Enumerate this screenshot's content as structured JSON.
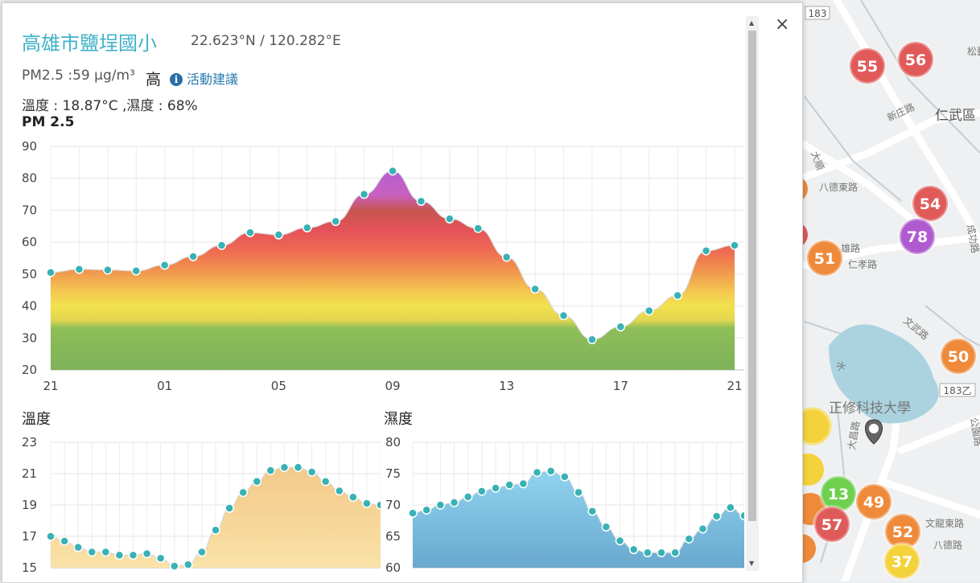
{
  "station": {
    "name": "高雄市鹽埕國小",
    "coords": "22.623°N / 120.282°E",
    "pm_text": "PM2.5 :59 μg/m³",
    "level": "高",
    "advice_label": "活動建議",
    "env_text": "溫度 : 18.87°C ,濕度 : 68%"
  },
  "close_glyph": "×",
  "map": {
    "road_labels": [
      "新庄路",
      "仁武區",
      "八德東路",
      "仁孝路",
      "雄路",
      "文武路",
      "正修科技大學",
      "大昌路",
      "文龍東路",
      "八德路",
      "183",
      "183乙",
      "松藝路",
      "水",
      "成功路",
      "公園路",
      "大順"
    ],
    "markers": [
      {
        "value": "55",
        "color": "#e05a5a"
      },
      {
        "value": "56",
        "color": "#e05a5a"
      },
      {
        "value": "54",
        "color": "#e05a5a"
      },
      {
        "value": "78",
        "color": "#b05ad0"
      },
      {
        "value": "51",
        "color": "#ee8a3a"
      },
      {
        "value": "50",
        "color": "#ee8a3a"
      },
      {
        "value": "13",
        "color": "#6fcf4f"
      },
      {
        "value": "49",
        "color": "#ee8a3a"
      },
      {
        "value": "57",
        "color": "#e05a5a"
      },
      {
        "value": "52",
        "color": "#ee8a3a"
      },
      {
        "value": "37",
        "color": "#f3d23c"
      }
    ]
  },
  "chart_data": [
    {
      "type": "area",
      "title": "PM 2.5",
      "x_tick_labels": [
        "21",
        "01",
        "05",
        "09",
        "13",
        "17",
        "21"
      ],
      "ylim": [
        20,
        90
      ],
      "y_ticks": [
        20,
        30,
        40,
        50,
        60,
        70,
        80,
        90
      ],
      "values": [
        50.5,
        51.5,
        51.3,
        51,
        52.8,
        55.5,
        59,
        63,
        62.3,
        64.5,
        66.5,
        75,
        82.3,
        72.8,
        67.3,
        64.3,
        55.3,
        45.3,
        37,
        29.5,
        33.5,
        38.5,
        43.3,
        57.3,
        59
      ],
      "grid": true
    },
    {
      "type": "area",
      "title": "溫度",
      "ylim": [
        15,
        23
      ],
      "y_ticks": [
        15,
        17,
        19,
        21,
        23
      ],
      "values": [
        17.0,
        16.7,
        16.3,
        16.0,
        16.0,
        15.8,
        15.8,
        15.9,
        15.6,
        15.1,
        15.2,
        16.0,
        17.4,
        18.8,
        19.8,
        20.5,
        21.2,
        21.4,
        21.4,
        21.1,
        20.5,
        19.9,
        19.5,
        19.1,
        19.0
      ],
      "grid": true
    },
    {
      "type": "area",
      "title": "濕度",
      "ylim": [
        60,
        80
      ],
      "y_ticks": [
        60,
        65,
        70,
        75,
        80
      ],
      "values": [
        68.7,
        69.2,
        70,
        70.4,
        71.3,
        72.2,
        72.7,
        73.2,
        73.4,
        75.2,
        75.4,
        74.5,
        72,
        69,
        66.5,
        64.3,
        62.9,
        62.4,
        62.4,
        62.4,
        64.6,
        66.2,
        68.2,
        69.6,
        68.3
      ],
      "grid": true
    }
  ]
}
